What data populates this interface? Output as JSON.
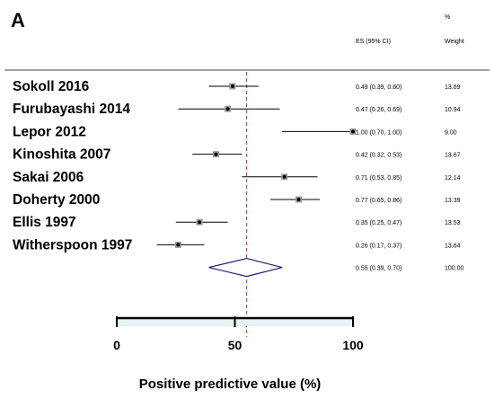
{
  "chart_data": {
    "type": "forest",
    "panel_label": "A",
    "header_es": "ES (95% CI)",
    "header_weight_pct": "%",
    "header_weight": "Weight",
    "xlabel": "Positive predictive value (%)",
    "xlim": [
      0,
      100
    ],
    "xticks": [
      "0",
      "50",
      "100"
    ],
    "pooled_reference": 55,
    "studies": [
      {
        "label": "Sokoll 2016",
        "es": 0.49,
        "lo": 0.39,
        "hi": 0.6,
        "es_text": "0.49 (0.39, 0.60)",
        "weight": "13.69"
      },
      {
        "label": "Furubayashi 2014",
        "es": 0.47,
        "lo": 0.26,
        "hi": 0.69,
        "es_text": "0.47 (0.26, 0.69)",
        "weight": "10.94"
      },
      {
        "label": "Lepor 2012",
        "es": 1.0,
        "lo": 0.7,
        "hi": 1.0,
        "es_text": "1.00 (0.70, 1.00)",
        "weight": "9.00"
      },
      {
        "label": "Kinoshita 2007",
        "es": 0.42,
        "lo": 0.32,
        "hi": 0.53,
        "es_text": "0.42 (0.32, 0.53)",
        "weight": "13.67"
      },
      {
        "label": "Sakai 2006",
        "es": 0.71,
        "lo": 0.53,
        "hi": 0.85,
        "es_text": "0.71 (0.53, 0.85)",
        "weight": "12.14"
      },
      {
        "label": "Doherty 2000",
        "es": 0.77,
        "lo": 0.65,
        "hi": 0.86,
        "es_text": "0.77 (0.65, 0.86)",
        "weight": "13.39"
      },
      {
        "label": "Ellis 1997",
        "es": 0.35,
        "lo": 0.25,
        "hi": 0.47,
        "es_text": "0.35 (0.25, 0.47)",
        "weight": "13.53"
      },
      {
        "label": "Witherspoon 1997",
        "es": 0.26,
        "lo": 0.17,
        "hi": 0.37,
        "es_text": "0.26 (0.17, 0.37)",
        "weight": "13.64"
      }
    ],
    "pooled": {
      "es": 0.55,
      "lo": 0.39,
      "hi": 0.7,
      "es_text": "0.55 (0.39, 0.70)",
      "weight": "100.00"
    },
    "colors": {
      "diamond": "#1a1a7a",
      "reference_line": "#b03030",
      "axis_fill": "#e6f4f4",
      "marker": "#000000"
    }
  }
}
